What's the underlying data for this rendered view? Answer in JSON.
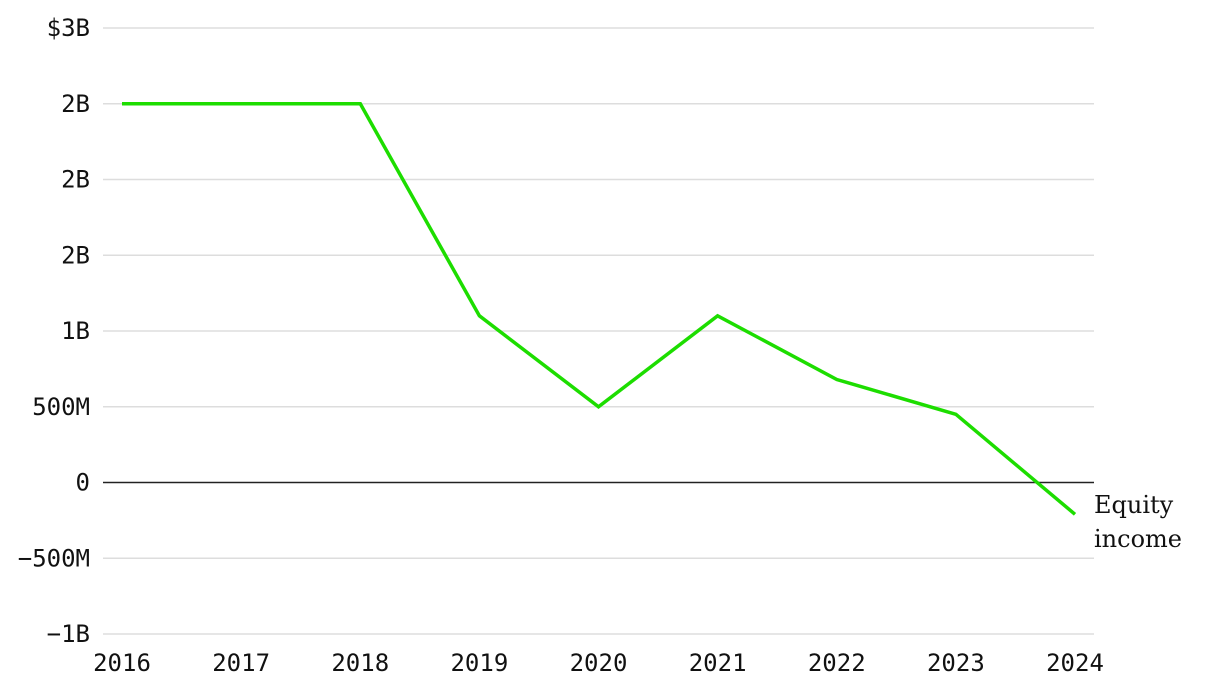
{
  "chart_data": {
    "type": "line",
    "title": "",
    "xlabel": "",
    "ylabel": "",
    "x": [
      2016,
      2017,
      2018,
      2019,
      2020,
      2021,
      2022,
      2023,
      2024
    ],
    "categories": [
      "2016",
      "2017",
      "2018",
      "2019",
      "2020",
      "2021",
      "2022",
      "2023",
      "2024"
    ],
    "ylim": [
      -1000000000,
      3000000000
    ],
    "y_ticks": [
      -1000000000,
      -500000000,
      0,
      500000000,
      1000000000,
      1500000000,
      2000000000,
      2500000000,
      3000000000
    ],
    "y_tick_labels": [
      "−1B",
      "−500M",
      "0",
      "500M",
      "1B",
      "2B",
      "2B",
      "2B",
      "$3B"
    ],
    "grid": true,
    "series": [
      {
        "name": "Equity income",
        "color": "#1ddd00",
        "values": [
          2500000000,
          2500000000,
          2500000000,
          1100000000,
          500000000,
          1100000000,
          680000000,
          450000000,
          -210000000
        ]
      }
    ],
    "series_label_lines": [
      "Equity",
      "income"
    ]
  }
}
